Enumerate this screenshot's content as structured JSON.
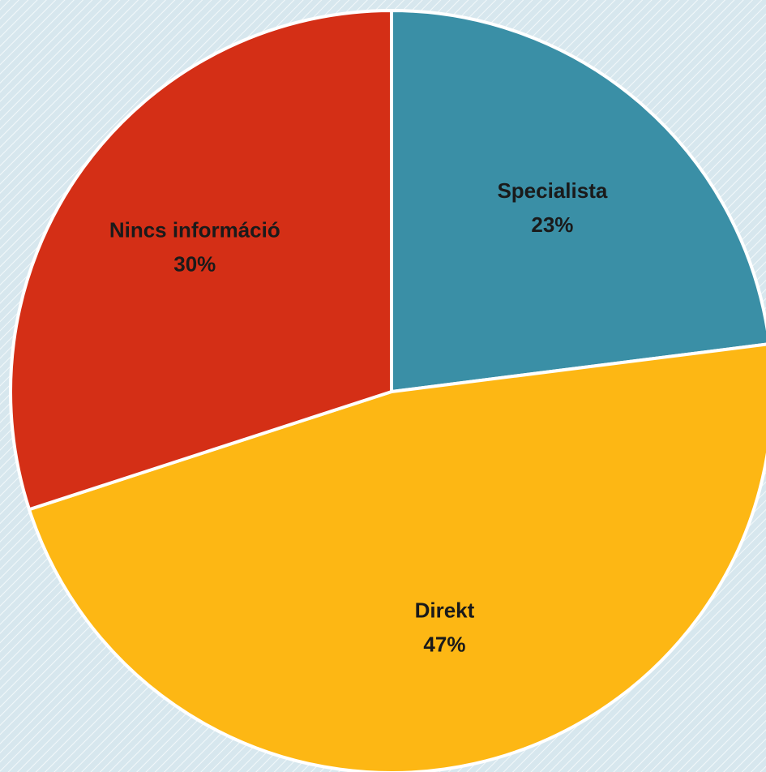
{
  "chart_data": {
    "type": "pie",
    "categories": [
      "Specialista",
      "Direkt",
      "Nincs információ"
    ],
    "values": [
      23,
      47,
      30
    ],
    "value_labels": [
      "23%",
      "47%",
      "30%"
    ],
    "colors": [
      "#3a8fa6",
      "#fdb714",
      "#d42f16"
    ]
  }
}
